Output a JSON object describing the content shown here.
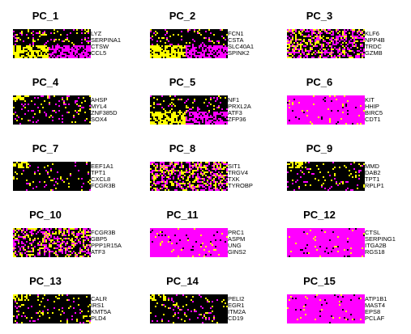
{
  "chart_data": {
    "type": "heatmap",
    "color_scale": {
      "low": "#ff00ff",
      "mid": "#000000",
      "high": "#ffff00"
    },
    "panels": [
      {
        "title": "PC_1",
        "genes": [
          "LYZ",
          "SERPINA1",
          "CTSW",
          "CCL5"
        ],
        "pattern": "split"
      },
      {
        "title": "PC_2",
        "genes": [
          "FCN1",
          "CSTA",
          "SLC40A1",
          "SPINK2"
        ],
        "pattern": "split"
      },
      {
        "title": "PC_3",
        "genes": [
          "KLF6",
          "NPP4B",
          "TRDC",
          "GZMB"
        ],
        "pattern": "noisy"
      },
      {
        "title": "PC_4",
        "genes": [
          "AHSP",
          "MYL4",
          "ZNF385D",
          "SOX4"
        ],
        "pattern": "dark"
      },
      {
        "title": "PC_5",
        "genes": [
          "NF1",
          "PRXL2A",
          "ATF3",
          "ZFP36"
        ],
        "pattern": "split"
      },
      {
        "title": "PC_6",
        "genes": [
          "KIT",
          "HHIP",
          "BIRC5",
          "CDT1"
        ],
        "pattern": "magenta"
      },
      {
        "title": "PC_7",
        "genes": [
          "EEF1A1",
          "TPT1",
          "CXCL8",
          "FCGR3B"
        ],
        "pattern": "dark"
      },
      {
        "title": "PC_8",
        "genes": [
          "SIT1",
          "TRGV4",
          "TXK",
          "TYROBP"
        ],
        "pattern": "noisy"
      },
      {
        "title": "PC_9",
        "genes": [
          "MMD",
          "DAB2",
          "TPT1",
          "RPLP1"
        ],
        "pattern": "dark"
      },
      {
        "title": "PC_10",
        "genes": [
          "FCGR3B",
          "GBP5",
          "PPP1R15A",
          "ATF3"
        ],
        "pattern": "noisy"
      },
      {
        "title": "PC_11",
        "genes": [
          "PRC1",
          "ASPM",
          "UNG",
          "GINS2"
        ],
        "pattern": "magenta"
      },
      {
        "title": "PC_12",
        "genes": [
          "CTSL",
          "SERPING1",
          "ITGA2B",
          "RGS18"
        ],
        "pattern": "magenta"
      },
      {
        "title": "PC_13",
        "genes": [
          "CALR",
          "IRS1",
          "KMT5A",
          "PLD4"
        ],
        "pattern": "dark"
      },
      {
        "title": "PC_14",
        "genes": [
          "PELI2",
          "EGR1",
          "ITM2A",
          "CD19"
        ],
        "pattern": "dark"
      },
      {
        "title": "PC_15",
        "genes": [
          "ATP1B1",
          "MAST4",
          "EPS8",
          "PCLAF"
        ],
        "pattern": "magenta"
      }
    ]
  }
}
